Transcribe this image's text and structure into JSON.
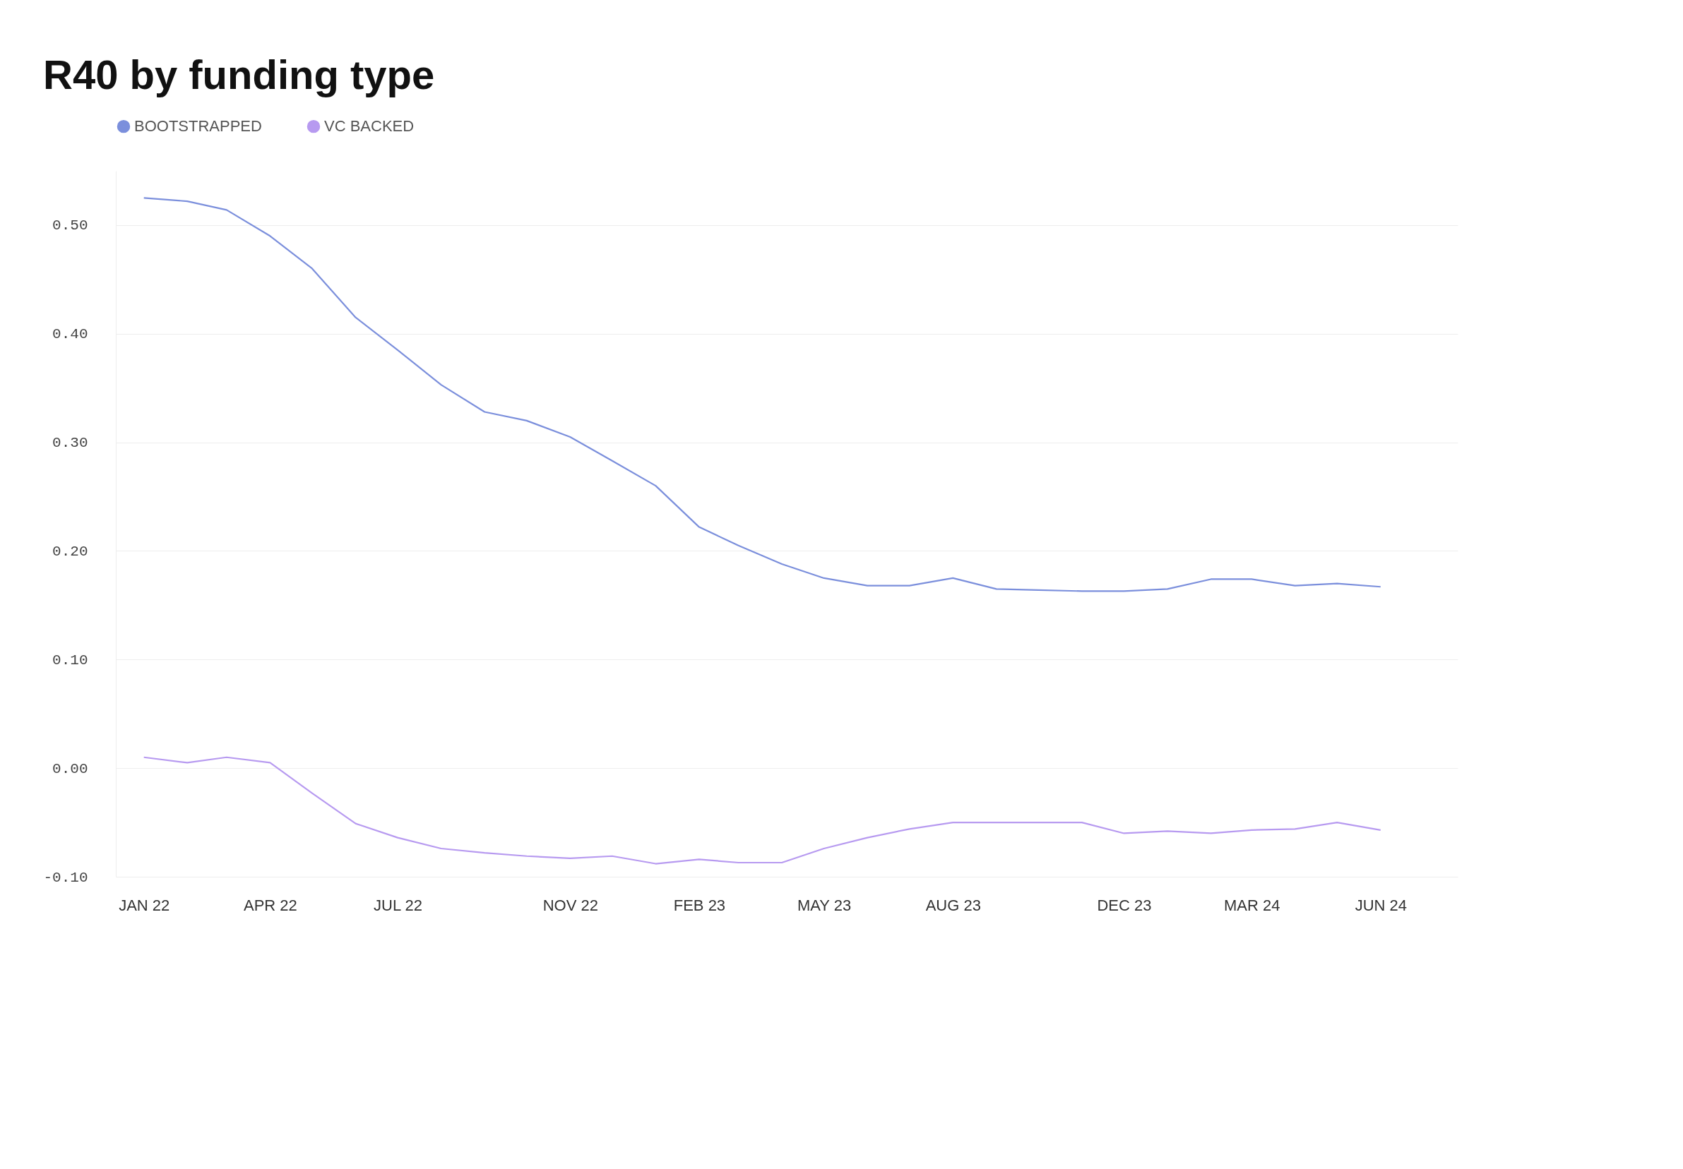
{
  "chart_data": {
    "type": "line",
    "title": "R40 by funding type",
    "x": [
      "2022-01",
      "2022-02",
      "2022-03",
      "2022-04",
      "2022-05",
      "2022-06",
      "2022-07",
      "2022-08",
      "2022-09",
      "2022-10",
      "2022-11",
      "2022-12",
      "2023-01",
      "2023-02",
      "2023-03",
      "2023-04",
      "2023-05",
      "2023-06",
      "2023-07",
      "2023-08",
      "2023-09",
      "2023-10",
      "2023-11",
      "2023-12",
      "2024-01",
      "2024-02",
      "2024-03",
      "2024-04",
      "2024-05",
      "2024-06"
    ],
    "series": [
      {
        "name": "BOOTSTRAPPED",
        "color": "#7b8fdc",
        "values": [
          0.525,
          0.522,
          0.514,
          0.49,
          0.46,
          0.415,
          0.385,
          0.353,
          0.328,
          0.32,
          0.305,
          0.283,
          0.26,
          0.222,
          0.205,
          0.188,
          0.175,
          0.168,
          0.168,
          0.175,
          0.165,
          0.164,
          0.163,
          0.163,
          0.165,
          0.174,
          0.174,
          0.168,
          0.17,
          0.167
        ]
      },
      {
        "name": "VC BACKED",
        "color": "#b79af0",
        "values": [
          0.01,
          0.005,
          0.01,
          0.005,
          -0.023,
          -0.051,
          -0.064,
          -0.074,
          -0.078,
          -0.081,
          -0.083,
          -0.081,
          -0.088,
          -0.084,
          -0.087,
          -0.087,
          -0.074,
          -0.064,
          -0.056,
          -0.05,
          -0.05,
          -0.05,
          -0.05,
          -0.06,
          -0.058,
          -0.06,
          -0.057,
          -0.056,
          -0.05,
          -0.057
        ]
      }
    ],
    "xlim": [
      "2021-12-12",
      "2024-07-26"
    ],
    "xticks": [
      {
        "value": "2022-01",
        "label": "JAN 22"
      },
      {
        "value": "2022-04",
        "label": "APR 22"
      },
      {
        "value": "2022-07",
        "label": "JUL 22"
      },
      {
        "value": "2022-11",
        "label": "NOV 22"
      },
      {
        "value": "2023-02",
        "label": "FEB 23"
      },
      {
        "value": "2023-05",
        "label": "MAY 23"
      },
      {
        "value": "2023-08",
        "label": "AUG 23"
      },
      {
        "value": "2023-12",
        "label": "DEC 23"
      },
      {
        "value": "2024-03",
        "label": "MAR 24"
      },
      {
        "value": "2024-06",
        "label": "JUN 24"
      }
    ],
    "ylim": [
      -0.1,
      0.55
    ],
    "yticks": [
      {
        "value": -0.1,
        "label": "-0.10"
      },
      {
        "value": 0,
        "label": "0.00"
      },
      {
        "value": 0.1,
        "label": "0.10"
      },
      {
        "value": 0.2,
        "label": "0.20"
      },
      {
        "value": 0.3,
        "label": "0.30"
      },
      {
        "value": 0.4,
        "label": "0.40"
      },
      {
        "value": 0.5,
        "label": "0.50"
      }
    ],
    "grid": "y",
    "legend": "top left",
    "marker": "none",
    "line_style": "solid"
  }
}
